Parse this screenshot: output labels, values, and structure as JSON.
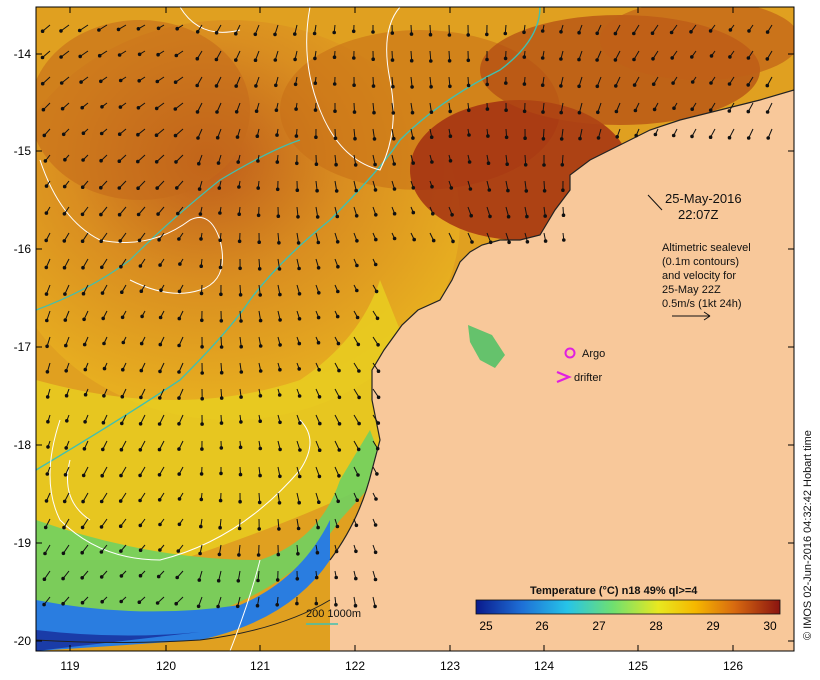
{
  "map": {
    "lon_ticks": [
      "119",
      "120",
      "121",
      "122",
      "123",
      "124",
      "125",
      "126"
    ],
    "lat_ticks": [
      "-14",
      "-15",
      "-16",
      "-17",
      "-18",
      "-19",
      "-20"
    ],
    "timestamp_date": "25-May-2016",
    "timestamp_time": "22:07Z",
    "sealevel_lines": [
      "Altimetric sealevel",
      "(0.1m contours)",
      "and velocity for",
      "25-May 22Z",
      "0.5m/s (1kt 24h)"
    ],
    "argo_label": "Argo",
    "drifter_label": "drifter",
    "depth_label": "200  1000m",
    "colorbar_title": "Temperature (°C) n18 49% ql>=4",
    "colorbar_ticks": [
      "25",
      "26",
      "27",
      "28",
      "29",
      "30"
    ],
    "credit": "© IMOS 02-Jun-2016 04:32:42 Hobart time"
  },
  "colors": {
    "land": "#f8c89a",
    "argo_marker": "#e020e0",
    "drifter_marker": "#e020e0",
    "isobath": "#40c0b0",
    "sealevel_contour": "#ffffff"
  }
}
